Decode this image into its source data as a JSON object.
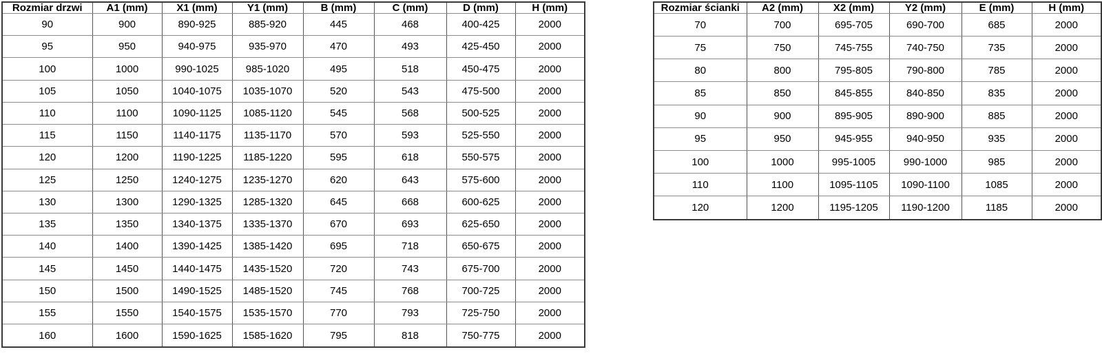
{
  "colors": {
    "background": "#ffffff",
    "text": "#000000",
    "border_outer": "#3a3a3a",
    "border_inner_vertical": "#545454",
    "border_inner_horizontal": "#8a8a8a"
  },
  "tables": {
    "doors": {
      "name": "door-sizes-table",
      "headers": [
        "Rozmiar drzwi",
        "A1 (mm)",
        "X1 (mm)",
        "Y1 (mm)",
        "B (mm)",
        "C (mm)",
        "D (mm)",
        "H (mm)"
      ],
      "rows": [
        [
          "90",
          "900",
          "890-925",
          "885-920",
          "445",
          "468",
          "400-425",
          "2000"
        ],
        [
          "95",
          "950",
          "940-975",
          "935-970",
          "470",
          "493",
          "425-450",
          "2000"
        ],
        [
          "100",
          "1000",
          "990-1025",
          "985-1020",
          "495",
          "518",
          "450-475",
          "2000"
        ],
        [
          "105",
          "1050",
          "1040-1075",
          "1035-1070",
          "520",
          "543",
          "475-500",
          "2000"
        ],
        [
          "110",
          "1100",
          "1090-1125",
          "1085-1120",
          "545",
          "568",
          "500-525",
          "2000"
        ],
        [
          "115",
          "1150",
          "1140-1175",
          "1135-1170",
          "570",
          "593",
          "525-550",
          "2000"
        ],
        [
          "120",
          "1200",
          "1190-1225",
          "1185-1220",
          "595",
          "618",
          "550-575",
          "2000"
        ],
        [
          "125",
          "1250",
          "1240-1275",
          "1235-1270",
          "620",
          "643",
          "575-600",
          "2000"
        ],
        [
          "130",
          "1300",
          "1290-1325",
          "1285-1320",
          "645",
          "668",
          "600-625",
          "2000"
        ],
        [
          "135",
          "1350",
          "1340-1375",
          "1335-1370",
          "670",
          "693",
          "625-650",
          "2000"
        ],
        [
          "140",
          "1400",
          "1390-1425",
          "1385-1420",
          "695",
          "718",
          "650-675",
          "2000"
        ],
        [
          "145",
          "1450",
          "1440-1475",
          "1435-1520",
          "720",
          "743",
          "675-700",
          "2000"
        ],
        [
          "150",
          "1500",
          "1490-1525",
          "1485-1520",
          "745",
          "768",
          "700-725",
          "2000"
        ],
        [
          "155",
          "1550",
          "1540-1575",
          "1535-1570",
          "770",
          "793",
          "725-750",
          "2000"
        ],
        [
          "160",
          "1600",
          "1590-1625",
          "1585-1620",
          "795",
          "818",
          "750-775",
          "2000"
        ]
      ]
    },
    "walls": {
      "name": "wall-panel-sizes-table",
      "headers": [
        "Rozmiar ścianki",
        "A2 (mm)",
        "X2 (mm)",
        "Y2 (mm)",
        "E (mm)",
        "H (mm)"
      ],
      "rows": [
        [
          "70",
          "700",
          "695-705",
          "690-700",
          "685",
          "2000"
        ],
        [
          "75",
          "750",
          "745-755",
          "740-750",
          "735",
          "2000"
        ],
        [
          "80",
          "800",
          "795-805",
          "790-800",
          "785",
          "2000"
        ],
        [
          "85",
          "850",
          "845-855",
          "840-850",
          "835",
          "2000"
        ],
        [
          "90",
          "900",
          "895-905",
          "890-900",
          "885",
          "2000"
        ],
        [
          "95",
          "950",
          "945-955",
          "940-950",
          "935",
          "2000"
        ],
        [
          "100",
          "1000",
          "995-1005",
          "990-1000",
          "985",
          "2000"
        ],
        [
          "110",
          "1100",
          "1095-1105",
          "1090-1100",
          "1085",
          "2000"
        ],
        [
          "120",
          "1200",
          "1195-1205",
          "1190-1200",
          "1185",
          "2000"
        ]
      ]
    }
  }
}
